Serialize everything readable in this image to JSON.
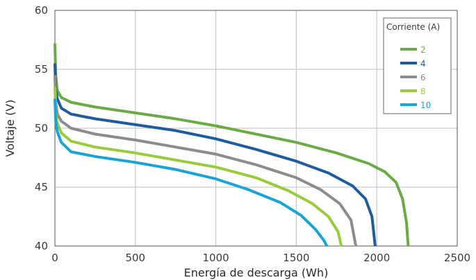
{
  "chart_data": {
    "type": "line",
    "xlabel": "Energía de descarga (Wh)",
    "ylabel": "Voltaje (V)",
    "xlim": [
      0,
      2500
    ],
    "ylim": [
      40,
      60
    ],
    "x_ticks": [
      "0",
      "500",
      "1000",
      "1500",
      "2000",
      "2500"
    ],
    "y_ticks": [
      "40",
      "45",
      "50",
      "55",
      "60"
    ],
    "grid": true,
    "legend": {
      "title": "Corriente (A)",
      "placement": "top-right"
    },
    "series": [
      {
        "name": "2",
        "color": "#6aab45",
        "points": [
          [
            0,
            57.2
          ],
          [
            5,
            54.5
          ],
          [
            15,
            53.2
          ],
          [
            40,
            52.6
          ],
          [
            100,
            52.2
          ],
          [
            250,
            51.8
          ],
          [
            500,
            51.3
          ],
          [
            750,
            50.8
          ],
          [
            1000,
            50.2
          ],
          [
            1250,
            49.5
          ],
          [
            1500,
            48.8
          ],
          [
            1750,
            47.9
          ],
          [
            1950,
            47.0
          ],
          [
            2050,
            46.3
          ],
          [
            2120,
            45.4
          ],
          [
            2160,
            44.0
          ],
          [
            2185,
            42.0
          ],
          [
            2195,
            40.0
          ]
        ]
      },
      {
        "name": "4",
        "color": "#1f5c9e",
        "points": [
          [
            0,
            55.5
          ],
          [
            5,
            53.3
          ],
          [
            15,
            52.5
          ],
          [
            40,
            51.7
          ],
          [
            100,
            51.2
          ],
          [
            250,
            50.8
          ],
          [
            500,
            50.3
          ],
          [
            750,
            49.8
          ],
          [
            1000,
            49.1
          ],
          [
            1250,
            48.2
          ],
          [
            1500,
            47.2
          ],
          [
            1700,
            46.2
          ],
          [
            1850,
            45.1
          ],
          [
            1930,
            44.0
          ],
          [
            1970,
            42.5
          ],
          [
            1990,
            40.0
          ]
        ]
      },
      {
        "name": "6",
        "color": "#8c8c8c",
        "points": [
          [
            0,
            54.5
          ],
          [
            5,
            52.2
          ],
          [
            15,
            51.2
          ],
          [
            40,
            50.6
          ],
          [
            100,
            50.0
          ],
          [
            250,
            49.5
          ],
          [
            500,
            49.0
          ],
          [
            750,
            48.4
          ],
          [
            1000,
            47.8
          ],
          [
            1250,
            46.9
          ],
          [
            1500,
            45.8
          ],
          [
            1650,
            44.8
          ],
          [
            1770,
            43.6
          ],
          [
            1840,
            42.2
          ],
          [
            1870,
            40.0
          ]
        ]
      },
      {
        "name": "8",
        "color": "#9acb3c",
        "points": [
          [
            0,
            53.5
          ],
          [
            5,
            51.3
          ],
          [
            15,
            50.4
          ],
          [
            40,
            49.6
          ],
          [
            100,
            48.9
          ],
          [
            250,
            48.4
          ],
          [
            500,
            47.9
          ],
          [
            750,
            47.3
          ],
          [
            1000,
            46.7
          ],
          [
            1250,
            45.8
          ],
          [
            1450,
            44.7
          ],
          [
            1600,
            43.6
          ],
          [
            1700,
            42.5
          ],
          [
            1760,
            41.2
          ],
          [
            1780,
            40.0
          ]
        ]
      },
      {
        "name": "10",
        "color": "#1aa3d6",
        "points": [
          [
            0,
            52.5
          ],
          [
            5,
            50.6
          ],
          [
            15,
            49.7
          ],
          [
            40,
            48.8
          ],
          [
            100,
            48.0
          ],
          [
            250,
            47.6
          ],
          [
            500,
            47.1
          ],
          [
            750,
            46.5
          ],
          [
            1000,
            45.7
          ],
          [
            1200,
            44.8
          ],
          [
            1400,
            43.7
          ],
          [
            1530,
            42.6
          ],
          [
            1620,
            41.4
          ],
          [
            1670,
            40.5
          ],
          [
            1690,
            40.0
          ]
        ]
      }
    ]
  }
}
